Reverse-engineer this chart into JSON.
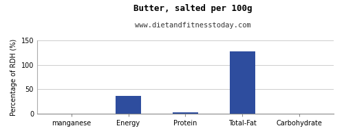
{
  "title": "Butter, salted per 100g",
  "subtitle": "www.dietandfitnesstoday.com",
  "categories": [
    "manganese",
    "Energy",
    "Protein",
    "Total-Fat",
    "Carbohydrate"
  ],
  "values": [
    0,
    37,
    3,
    127,
    0
  ],
  "bar_color": "#2e4d9e",
  "ylabel": "Percentage of RDH (%)",
  "ylim": [
    0,
    150
  ],
  "yticks": [
    0,
    50,
    100,
    150
  ],
  "background_color": "#ffffff",
  "plot_bg_color": "#ffffff",
  "grid_color": "#cccccc",
  "title_fontsize": 9,
  "subtitle_fontsize": 7.5,
  "tick_fontsize": 7,
  "ylabel_fontsize": 7,
  "bar_width": 0.45
}
